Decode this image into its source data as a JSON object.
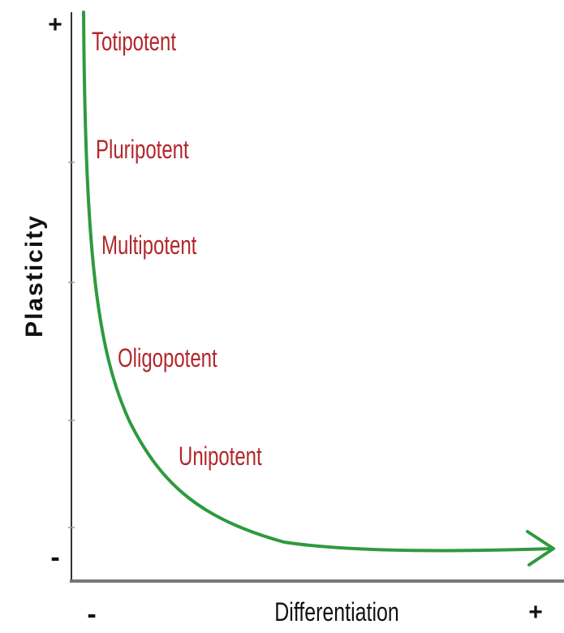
{
  "y_axis": {
    "label": "Plasticity",
    "max": "+",
    "min": "-"
  },
  "x_axis": {
    "label": "Differentiation",
    "min": "-",
    "max": "+"
  },
  "labels": [
    "Totipotent",
    "Pluripotent",
    "Multipotent",
    "Oligopotent",
    "Unipotent"
  ]
}
